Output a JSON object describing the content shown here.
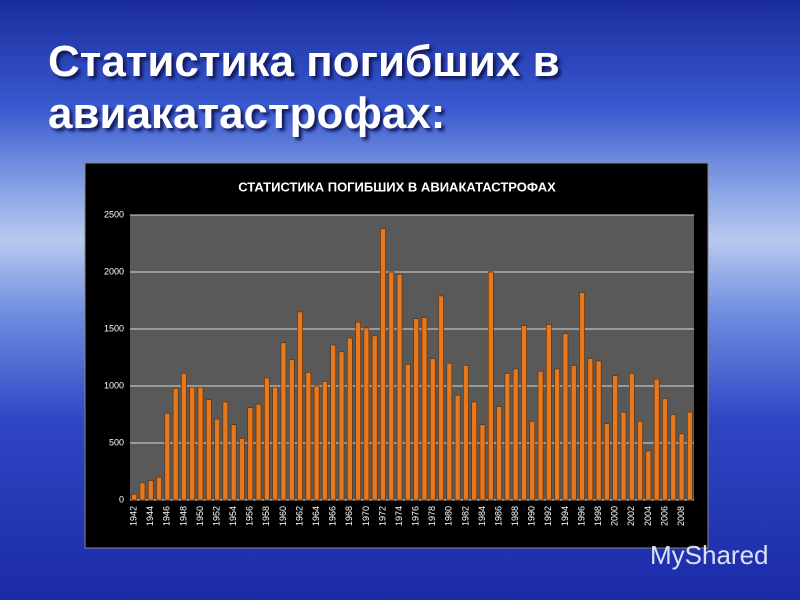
{
  "slide_title": "Статистика погибших в авиакатастрофах:",
  "watermark": "MyShared",
  "chart_data": {
    "type": "bar",
    "title": "СТАТИСТИКА ПОГИБШИХ В АВИАКАТАСТРОФАХ",
    "categories": [
      "1942",
      null,
      "1944",
      null,
      "1946",
      null,
      "1948",
      null,
      "1950",
      null,
      "1952",
      null,
      "1954",
      null,
      "1956",
      null,
      "1958",
      null,
      "1960",
      null,
      "1962",
      null,
      "1964",
      null,
      "1966",
      null,
      "1968",
      null,
      "1970",
      null,
      "1972",
      null,
      "1974",
      null,
      "1976",
      null,
      "1978",
      null,
      "1980",
      null,
      "1982",
      null,
      "1984",
      null,
      "1986",
      null,
      "1988",
      null,
      "1990",
      null,
      "1992",
      null,
      "1994",
      null,
      "1996",
      null,
      "1998",
      null,
      "2000",
      null,
      "2002",
      null,
      "2004",
      null,
      "2006",
      null,
      "2008",
      null
    ],
    "values": [
      50,
      150,
      170,
      200,
      760,
      980,
      1110,
      990,
      990,
      880,
      710,
      860,
      660,
      540,
      810,
      840,
      1070,
      990,
      1380,
      1230,
      1650,
      1120,
      1000,
      1040,
      1360,
      1300,
      1420,
      1560,
      1510,
      1440,
      2380,
      2000,
      1980,
      1190,
      1590,
      1600,
      1240,
      1790,
      1200,
      920,
      1180,
      860,
      660,
      2000,
      820,
      1110,
      1150,
      1530,
      690,
      1130,
      1540,
      1150,
      1460,
      1180,
      1820,
      1240,
      1220,
      670,
      1090,
      770,
      1110,
      690,
      430,
      1060,
      890,
      750,
      580,
      770
    ],
    "color": "#e8781e",
    "ylim": [
      0,
      2500
    ],
    "yticks": [
      0,
      500,
      1000,
      1500,
      2000,
      2500
    ],
    "grid": true
  }
}
